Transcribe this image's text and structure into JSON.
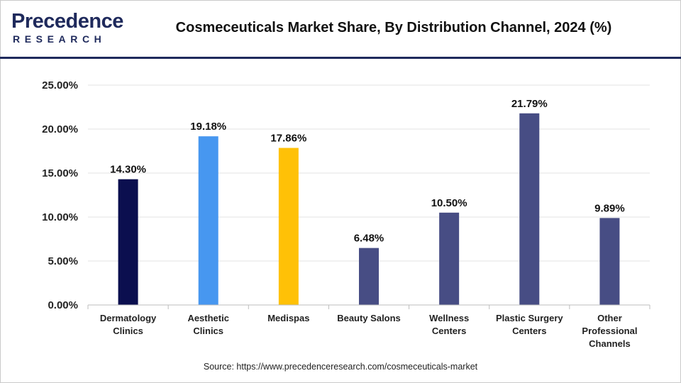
{
  "brand": {
    "name_first": "P",
    "name_rest": "recedence",
    "sub": "RESEARCH"
  },
  "colors": {
    "brand": "#1f2a5c",
    "accent": "#2f80ed"
  },
  "source_text": "Source: https://www.precedenceresearch.com/cosmeceuticals-market",
  "chart_data": {
    "type": "bar",
    "title": "Cosmeceuticals Market Share, By Distribution Channel, 2024 (%)",
    "xlabel": "",
    "ylabel": "",
    "categories": [
      [
        "Dermatology",
        "Clinics"
      ],
      [
        "Aesthetic",
        "Clinics"
      ],
      [
        "Medispas"
      ],
      [
        "Beauty Salons"
      ],
      [
        "Wellness",
        "Centers"
      ],
      [
        "Plastic Surgery",
        "Centers"
      ],
      [
        "Other",
        "Professional",
        "Channels"
      ]
    ],
    "values": [
      14.3,
      19.18,
      17.86,
      6.48,
      10.5,
      21.79,
      9.89
    ],
    "data_labels": [
      "14.30%",
      "19.18%",
      "17.86%",
      "6.48%",
      "10.50%",
      "21.79%",
      "9.89%"
    ],
    "bar_colors": [
      "#0b0f4f",
      "#4797f0",
      "#ffc107",
      "#474d84",
      "#474d84",
      "#474d84",
      "#474d84"
    ],
    "ylim": [
      0,
      25
    ],
    "yticks": [
      0,
      5,
      10,
      15,
      20,
      25
    ],
    "ytick_labels": [
      "0.00%",
      "5.00%",
      "10.00%",
      "15.00%",
      "20.00%",
      "25.00%"
    ],
    "grid": true,
    "legend": "none"
  }
}
